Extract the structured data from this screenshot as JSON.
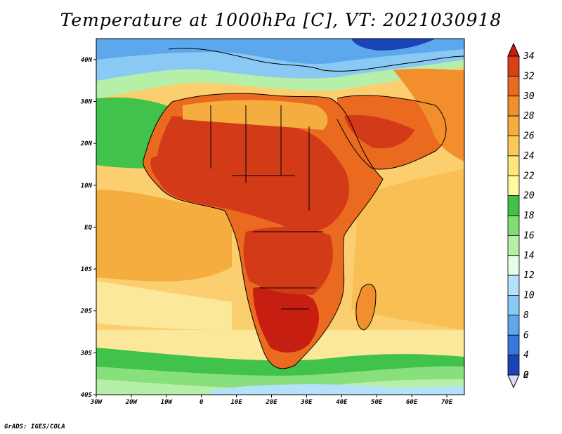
{
  "title": "Temperature at 1000hPa [C], VT: 2021030918",
  "credit": "GrADS: IGES/COLA",
  "map": {
    "lat_labels": [
      "40N",
      "30N",
      "20N",
      "10N",
      "EQ",
      "10S",
      "20S",
      "30S",
      "40S"
    ],
    "lon_labels": [
      "30W",
      "20W",
      "10W",
      "0",
      "10E",
      "20E",
      "30E",
      "40E",
      "50E",
      "60E",
      "70E"
    ],
    "extent": {
      "lon": [
        -30,
        75
      ],
      "lat": [
        -40,
        45
      ]
    }
  },
  "colorbar": {
    "labels": [
      "34",
      "32",
      "30",
      "28",
      "26",
      "24",
      "22",
      "20",
      "18",
      "16",
      "14",
      "12",
      "10",
      "8",
      "6",
      "4",
      "2",
      "0"
    ],
    "colors": [
      "#fdfaa0",
      "#fde67a",
      "#fbc95a",
      "#f6ad40",
      "#f28e2b",
      "#ea6a1f",
      "#d8401a",
      "#bb1d12",
      "#41c24a",
      "#7ede74",
      "#b6f0a8",
      "#e6fde6",
      "#b4e2fa",
      "#8ac9f4",
      "#5da8ec",
      "#3877dc",
      "#1a43b8",
      "#0b1b7a"
    ]
  },
  "colors": {
    "ocean_warm": "#fbd070",
    "ocean_cool": "#fbe89a",
    "land_hot": "#d33a18",
    "land_very_hot": "#c61e10",
    "land_warm": "#ee7a28",
    "north_cool": "#7ed7f0",
    "north_cold": "#2a62d0",
    "south_band": "#3cc24a",
    "south_green": "#88e07c",
    "south_blue": "#9ad7f4"
  }
}
